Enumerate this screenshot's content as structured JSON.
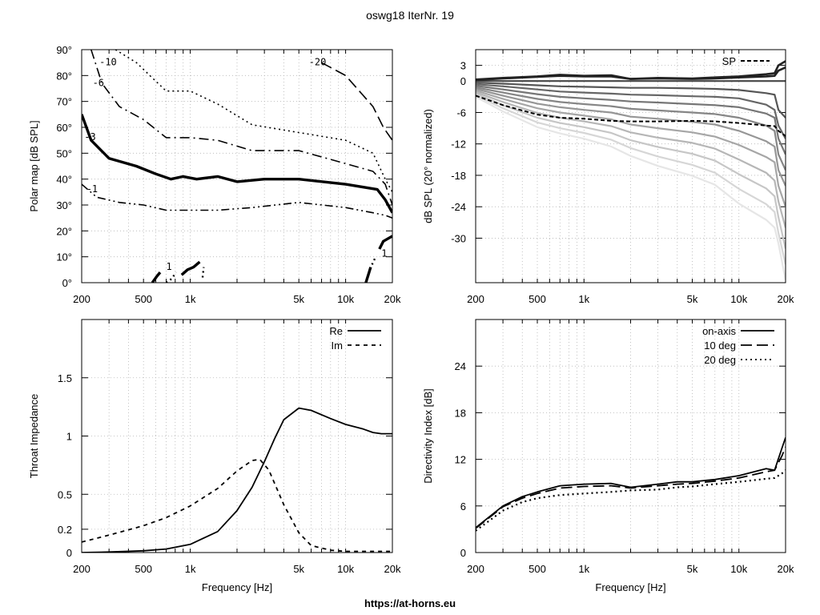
{
  "figure": {
    "title": "oswg18 IterNr. 19",
    "footer": "https://at-horns.eu"
  },
  "chart_data": [
    {
      "type": "line",
      "title": "",
      "xlabel": "",
      "ylabel": "Polar map [dB SPL]",
      "xscale": "log",
      "xlim": [
        200,
        20000
      ],
      "ylim": [
        0,
        90
      ],
      "xticks": [
        200,
        500,
        1000,
        5000,
        10000,
        20000
      ],
      "xtick_labels": [
        "200",
        "500",
        "1k",
        "5k",
        "10k",
        "20k"
      ],
      "yticks": [
        0,
        10,
        20,
        30,
        40,
        50,
        60,
        70,
        80,
        90
      ],
      "ytick_labels": [
        "0°",
        "10°",
        "20°",
        "30°",
        "40°",
        "50°",
        "60°",
        "70°",
        "80°",
        "90°"
      ],
      "grid": true,
      "contours": [
        {
          "level": "-10",
          "style": "dotted",
          "width": 1.6,
          "x": [
            330,
            450,
            700,
            1000,
            1500,
            2500,
            5000,
            10000,
            15000,
            18000,
            20000
          ],
          "y": [
            90,
            85,
            74,
            74,
            69,
            61,
            58,
            55,
            50,
            40,
            35
          ]
        },
        {
          "level": "-20",
          "style": "dashed",
          "width": 1.6,
          "x": [
            7000,
            10000,
            15000,
            17500,
            20000
          ],
          "y": [
            85,
            80,
            68,
            60,
            55
          ]
        },
        {
          "level": "-6",
          "style": "dashdot",
          "width": 1.6,
          "x": [
            230,
            270,
            350,
            500,
            700,
            1000,
            1500,
            2500,
            5000,
            10000,
            15000,
            18000,
            20000
          ],
          "y": [
            90,
            77,
            68,
            63,
            56,
            56,
            55,
            51,
            51,
            46,
            43,
            38,
            30
          ]
        },
        {
          "level": "-3",
          "style": "solid",
          "width": 3.4,
          "x": [
            200,
            230,
            300,
            450,
            600,
            750,
            900,
            1100,
            1500,
            2000,
            3000,
            5000,
            10000,
            16000,
            18000,
            20000
          ],
          "y": [
            65,
            55,
            48,
            45,
            42,
            40,
            41,
            40,
            41,
            39,
            40,
            40,
            38,
            36,
            32,
            27
          ]
        },
        {
          "level": "-1",
          "style": "dashdotdot",
          "width": 1.6,
          "x": [
            200,
            250,
            350,
            500,
            700,
            1000,
            1500,
            2500,
            5000,
            10000,
            15000,
            18000,
            20000
          ],
          "y": [
            38,
            33,
            31,
            30,
            28,
            28,
            28,
            29,
            31,
            29,
            27,
            26,
            25
          ]
        },
        {
          "level": "1",
          "style": "solid",
          "width": 3.4,
          "x": [
            570,
            610,
            640
          ],
          "y": [
            0,
            2.5,
            4
          ]
        },
        {
          "level": "1",
          "style": "dotted",
          "width": 2.4,
          "x": [
            700,
            760,
            810
          ],
          "y": [
            0,
            1.5,
            4
          ]
        },
        {
          "level": "1",
          "style": "solid",
          "width": 3.4,
          "x": [
            880,
            960,
            1050,
            1150
          ],
          "y": [
            3,
            5,
            6,
            8
          ]
        },
        {
          "level": "1",
          "style": "dotted",
          "width": 2.4,
          "x": [
            1200,
            1220
          ],
          "y": [
            2,
            6
          ]
        },
        {
          "level": "1",
          "style": "solid",
          "width": 3.4,
          "x": [
            13500,
            14500
          ],
          "y": [
            0,
            6
          ]
        },
        {
          "level": "1",
          "style": "dotted",
          "width": 2.4,
          "x": [
            14800,
            15600
          ],
          "y": [
            7,
            10
          ]
        },
        {
          "level": "1",
          "style": "solid",
          "width": 3.4,
          "x": [
            16500,
            17500,
            20000
          ],
          "y": [
            13,
            16,
            18
          ]
        }
      ],
      "contour_labels": [
        {
          "text": "-10",
          "x": 260,
          "y": 84
        },
        {
          "text": "-20",
          "x": 5800,
          "y": 84
        },
        {
          "text": "-6",
          "x": 235,
          "y": 76
        },
        {
          "text": "-3",
          "x": 208,
          "y": 55
        },
        {
          "text": "-1",
          "x": 214,
          "y": 35
        },
        {
          "text": "1",
          "x": 700,
          "y": 5
        },
        {
          "text": "1",
          "x": 17000,
          "y": 10
        }
      ]
    },
    {
      "type": "line",
      "title": "",
      "xlabel": "",
      "ylabel": "dB SPL (20° normalized)",
      "xscale": "log",
      "xlim": [
        200,
        20000
      ],
      "ylim": [
        -38.5,
        6
      ],
      "xticks": [
        200,
        500,
        1000,
        5000,
        10000,
        20000
      ],
      "xtick_labels": [
        "200",
        "500",
        "1k",
        "5k",
        "10k",
        "20k"
      ],
      "yticks": [
        3,
        0,
        -6,
        -12,
        -18,
        -24,
        -30
      ],
      "ytick_labels": [
        "3",
        "0",
        "-6",
        "-12",
        "-18",
        "-24",
        "-30"
      ],
      "grid": true,
      "legend": {
        "position": "top-right",
        "entries": [
          "SP"
        ]
      },
      "x": [
        200,
        300,
        500,
        700,
        1000,
        1500,
        2000,
        3000,
        5000,
        7000,
        10000,
        15000,
        17000,
        18000,
        20000
      ],
      "series": [
        {
          "angle": 0,
          "values": [
            0.3,
            0.6,
            0.9,
            1.2,
            1.0,
            1.1,
            0.4,
            0.6,
            0.5,
            0.7,
            0.9,
            1.3,
            1.5,
            3.0,
            3.8
          ]
        },
        {
          "angle": 10,
          "values": [
            0.2,
            0.5,
            0.8,
            1.0,
            0.9,
            0.9,
            0.4,
            0.5,
            0.4,
            0.5,
            0.7,
            0.9,
            1.0,
            2.0,
            2.6
          ]
        },
        {
          "angle": 20,
          "values": [
            0,
            0,
            0,
            0,
            0,
            0,
            0,
            0,
            0,
            0,
            0,
            0,
            0,
            0,
            0
          ]
        },
        {
          "angle": 30,
          "values": [
            -0.3,
            -0.5,
            -0.8,
            -1.0,
            -1.1,
            -1.2,
            -1.3,
            -1.3,
            -1.4,
            -1.5,
            -1.7,
            -2.3,
            -2.6,
            -5.5,
            -7
          ]
        },
        {
          "angle": 40,
          "values": [
            -0.6,
            -1.0,
            -1.6,
            -2.0,
            -2.2,
            -2.4,
            -2.6,
            -2.7,
            -2.9,
            -3.0,
            -3.3,
            -4.5,
            -5.5,
            -8.5,
            -11
          ]
        },
        {
          "angle": 50,
          "values": [
            -0.9,
            -1.6,
            -2.5,
            -3.0,
            -3.3,
            -3.6,
            -3.9,
            -4.1,
            -4.4,
            -4.6,
            -5.0,
            -6.2,
            -7,
            -11,
            -14
          ]
        },
        {
          "angle": 60,
          "values": [
            -1.2,
            -2.2,
            -3.4,
            -4.0,
            -4.4,
            -4.8,
            -5.3,
            -5.6,
            -6.0,
            -6.3,
            -7.0,
            -8.5,
            -9.5,
            -14,
            -17
          ]
        },
        {
          "angle": 70,
          "values": [
            -1.5,
            -2.8,
            -4.3,
            -5.0,
            -5.5,
            -6.0,
            -6.8,
            -7.2,
            -7.8,
            -8.3,
            -9.5,
            -11.5,
            -12.5,
            -17,
            -20
          ]
        },
        {
          "angle": 80,
          "values": [
            -1.8,
            -3.4,
            -5.2,
            -6.0,
            -6.6,
            -7.3,
            -8.3,
            -9.0,
            -9.8,
            -10.6,
            -12.2,
            -14.5,
            -15.5,
            -20,
            -24
          ]
        },
        {
          "angle": 90,
          "values": [
            -2.1,
            -4.0,
            -6.1,
            -7.0,
            -7.7,
            -8.6,
            -9.8,
            -10.8,
            -11.8,
            -12.9,
            -15.0,
            -17.5,
            -19,
            -23,
            -28
          ]
        },
        {
          "angle": 100,
          "values": [
            -2.4,
            -4.6,
            -7.0,
            -8.0,
            -8.8,
            -9.9,
            -11.3,
            -12.6,
            -13.9,
            -15.2,
            -17.8,
            -20.5,
            -22,
            -26,
            -32
          ]
        },
        {
          "angle": 110,
          "values": [
            -2.7,
            -5.2,
            -7.9,
            -9.0,
            -9.9,
            -11.2,
            -12.8,
            -14.4,
            -16.0,
            -17.5,
            -20.6,
            -23.5,
            -25,
            -29,
            -35
          ]
        },
        {
          "angle": 120,
          "values": [
            -3.0,
            -5.8,
            -8.8,
            -10.0,
            -11.0,
            -12.5,
            -14.3,
            -16.2,
            -18.1,
            -19.8,
            -23.4,
            -26.5,
            -28,
            -31,
            -38
          ]
        }
      ],
      "sound_power": {
        "name": "SP",
        "values": [
          -2.8,
          -4.6,
          -6.4,
          -7.0,
          -7.2,
          -7.6,
          -7.7,
          -7.7,
          -7.6,
          -7.7,
          -8.0,
          -8.5,
          -8.6,
          -9.5,
          -10.5
        ]
      }
    },
    {
      "type": "line",
      "title": "",
      "xlabel": "Frequency [Hz]",
      "ylabel": "Throat Impedance",
      "xscale": "log",
      "xlim": [
        200,
        20000
      ],
      "ylim": [
        0,
        2
      ],
      "xticks": [
        200,
        500,
        1000,
        5000,
        10000,
        20000
      ],
      "xtick_labels": [
        "200",
        "500",
        "1k",
        "5k",
        "10k",
        "20k"
      ],
      "yticks": [
        0,
        0.2,
        0.5,
        1,
        1.5
      ],
      "ytick_labels": [
        "0",
        "0.2",
        "0.5",
        "1",
        "1.5"
      ],
      "grid": true,
      "legend": {
        "position": "top-right",
        "entries": [
          "Re",
          "Im"
        ]
      },
      "series": [
        {
          "name": "Re",
          "style": "solid",
          "x": [
            200,
            300,
            500,
            700,
            1000,
            1500,
            2000,
            2500,
            3000,
            3500,
            4000,
            5000,
            6000,
            8000,
            10000,
            13000,
            15000,
            17000,
            20000
          ],
          "values": [
            0,
            0.005,
            0.015,
            0.03,
            0.07,
            0.18,
            0.36,
            0.56,
            0.78,
            0.98,
            1.14,
            1.24,
            1.22,
            1.15,
            1.1,
            1.06,
            1.03,
            1.02,
            1.02
          ]
        },
        {
          "name": "Im",
          "style": "dashed",
          "x": [
            200,
            300,
            500,
            700,
            1000,
            1500,
            2000,
            2500,
            2800,
            3200,
            4000,
            5000,
            6000,
            8000,
            10000,
            13000,
            15000,
            20000
          ],
          "values": [
            0.09,
            0.15,
            0.23,
            0.3,
            0.4,
            0.55,
            0.7,
            0.79,
            0.8,
            0.71,
            0.41,
            0.17,
            0.06,
            0.02,
            0.01,
            0.01,
            0.01,
            0.01
          ]
        }
      ]
    },
    {
      "type": "line",
      "title": "",
      "xlabel": "Frequency [Hz]",
      "ylabel": "Directivity Index [dB]",
      "xscale": "log",
      "xlim": [
        200,
        20000
      ],
      "ylim": [
        0,
        30
      ],
      "xticks": [
        200,
        500,
        1000,
        5000,
        10000,
        20000
      ],
      "xtick_labels": [
        "200",
        "500",
        "1k",
        "5k",
        "10k",
        "20k"
      ],
      "yticks": [
        0,
        6,
        12,
        18,
        24
      ],
      "ytick_labels": [
        "0",
        "6",
        "12",
        "18",
        "24"
      ],
      "grid": true,
      "legend": {
        "position": "top-right",
        "entries": [
          "on-axis",
          "10 deg",
          "20 deg"
        ]
      },
      "x": [
        200,
        300,
        400,
        500,
        700,
        1000,
        1500,
        2000,
        3000,
        4000,
        5000,
        7000,
        10000,
        15000,
        17000,
        19000,
        20000
      ],
      "series": [
        {
          "name": "on-axis",
          "style": "solid",
          "values": [
            3.2,
            6.0,
            7.2,
            7.8,
            8.6,
            8.8,
            8.9,
            8.4,
            8.8,
            9.1,
            9.1,
            9.4,
            9.9,
            10.8,
            10.6,
            13.5,
            14.8
          ]
        },
        {
          "name": "10 deg",
          "style": "dashed",
          "values": [
            3.1,
            5.9,
            7.0,
            7.6,
            8.3,
            8.5,
            8.6,
            8.3,
            8.6,
            8.8,
            8.9,
            9.2,
            9.6,
            10.4,
            10.6,
            12.5,
            13.6
          ]
        },
        {
          "name": "20 deg",
          "style": "dotted",
          "values": [
            2.8,
            5.4,
            6.5,
            7.0,
            7.4,
            7.6,
            7.8,
            8.0,
            8.1,
            8.4,
            8.5,
            8.8,
            9.1,
            9.5,
            9.6,
            10.2,
            10.6
          ]
        }
      ]
    }
  ]
}
